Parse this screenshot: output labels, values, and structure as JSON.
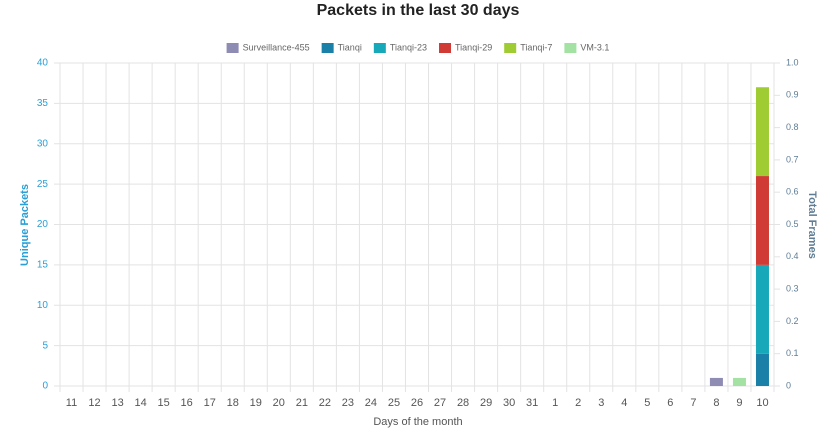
{
  "chart_data": {
    "type": "bar",
    "stacked": true,
    "title": "Packets in the last 30 days",
    "x_label": "Days of the month",
    "y_label": "Unique Packets",
    "y2_label": "Total Frames",
    "categories": [
      "11",
      "12",
      "13",
      "14",
      "15",
      "16",
      "17",
      "18",
      "19",
      "20",
      "21",
      "22",
      "23",
      "24",
      "25",
      "26",
      "27",
      "28",
      "29",
      "30",
      "31",
      "1",
      "2",
      "3",
      "4",
      "5",
      "6",
      "7",
      "8",
      "9",
      "10"
    ],
    "series": [
      {
        "name": "Surveillance-455",
        "color": "#8e8cb3",
        "values": [
          0,
          0,
          0,
          0,
          0,
          0,
          0,
          0,
          0,
          0,
          0,
          0,
          0,
          0,
          0,
          0,
          0,
          0,
          0,
          0,
          0,
          0,
          0,
          0,
          0,
          0,
          0,
          0,
          1,
          0,
          0
        ]
      },
      {
        "name": "Tianqi",
        "color": "#1b80a8",
        "values": [
          0,
          0,
          0,
          0,
          0,
          0,
          0,
          0,
          0,
          0,
          0,
          0,
          0,
          0,
          0,
          0,
          0,
          0,
          0,
          0,
          0,
          0,
          0,
          0,
          0,
          0,
          0,
          0,
          0,
          0,
          4
        ]
      },
      {
        "name": "Tianqi-23",
        "color": "#17a9ba",
        "values": [
          0,
          0,
          0,
          0,
          0,
          0,
          0,
          0,
          0,
          0,
          0,
          0,
          0,
          0,
          0,
          0,
          0,
          0,
          0,
          0,
          0,
          0,
          0,
          0,
          0,
          0,
          0,
          0,
          0,
          0,
          11
        ]
      },
      {
        "name": "Tianqi-29",
        "color": "#d03c35",
        "values": [
          0,
          0,
          0,
          0,
          0,
          0,
          0,
          0,
          0,
          0,
          0,
          0,
          0,
          0,
          0,
          0,
          0,
          0,
          0,
          0,
          0,
          0,
          0,
          0,
          0,
          0,
          0,
          0,
          0,
          0,
          11
        ]
      },
      {
        "name": "Tianqi-7",
        "color": "#9fcc33",
        "values": [
          0,
          0,
          0,
          0,
          0,
          0,
          0,
          0,
          0,
          0,
          0,
          0,
          0,
          0,
          0,
          0,
          0,
          0,
          0,
          0,
          0,
          0,
          0,
          0,
          0,
          0,
          0,
          0,
          0,
          0,
          11
        ]
      },
      {
        "name": "VM-3.1",
        "color": "#a3e2a2",
        "values": [
          0,
          0,
          0,
          0,
          0,
          0,
          0,
          0,
          0,
          0,
          0,
          0,
          0,
          0,
          0,
          0,
          0,
          0,
          0,
          0,
          0,
          0,
          0,
          0,
          0,
          0,
          0,
          0,
          0,
          1,
          0
        ]
      }
    ],
    "ylim": [
      0,
      40
    ],
    "yticks": [
      0,
      5,
      10,
      15,
      20,
      25,
      30,
      35,
      40
    ],
    "y2lim": [
      0,
      1
    ],
    "y2ticks": [
      0,
      0.1,
      0.2,
      0.3,
      0.4,
      0.5,
      0.6,
      0.7,
      0.8,
      0.9,
      {
        "value": 1,
        "label": "1.0"
      }
    ],
    "grid": true
  }
}
